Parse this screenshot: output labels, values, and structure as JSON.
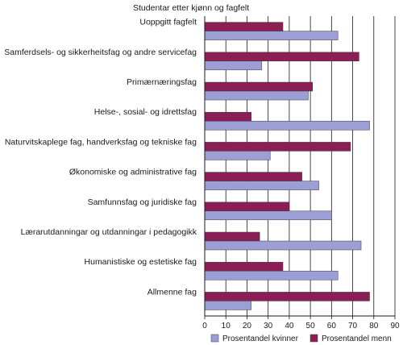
{
  "chart_data": {
    "type": "bar",
    "orientation": "horizontal",
    "title": "Studentar etter kjønn og fagfelt",
    "categories": [
      "Uoppgitt fagfelt",
      "Samferdsels- og sikkerheitsfag og andre servicefag",
      "Primærnæringsfag",
      "Helse-, sosial- og idrettsfag",
      "Naturvitskaplege fag, handverksfag og tekniske fag",
      "Økonomiske og administrative fag",
      "Samfunnsfag og juridiske fag",
      "Lærarutdanningar og utdanningar i pedagogikk",
      "Humanistiske og estetiske fag",
      "Allmenne fag"
    ],
    "series": [
      {
        "name": "Prosentandel menn",
        "color": "#8b1f55",
        "values": [
          37,
          73,
          51,
          22,
          69,
          46,
          40,
          26,
          37,
          78
        ]
      },
      {
        "name": "Prosentandel kvinner",
        "color": "#9b9fd6",
        "values": [
          63,
          27,
          49,
          78,
          31,
          54,
          60,
          74,
          63,
          22
        ]
      }
    ],
    "xlim": [
      0,
      90
    ],
    "xticks": [
      0,
      10,
      20,
      30,
      40,
      50,
      60,
      70,
      80,
      90
    ],
    "grid": "vertical",
    "legend": {
      "placement": "bottom",
      "items": [
        {
          "label": "Prosentandel kvinner",
          "color": "#9b9fd6"
        },
        {
          "label": "Prosentandel menn",
          "color": "#8b1f55"
        }
      ]
    }
  }
}
